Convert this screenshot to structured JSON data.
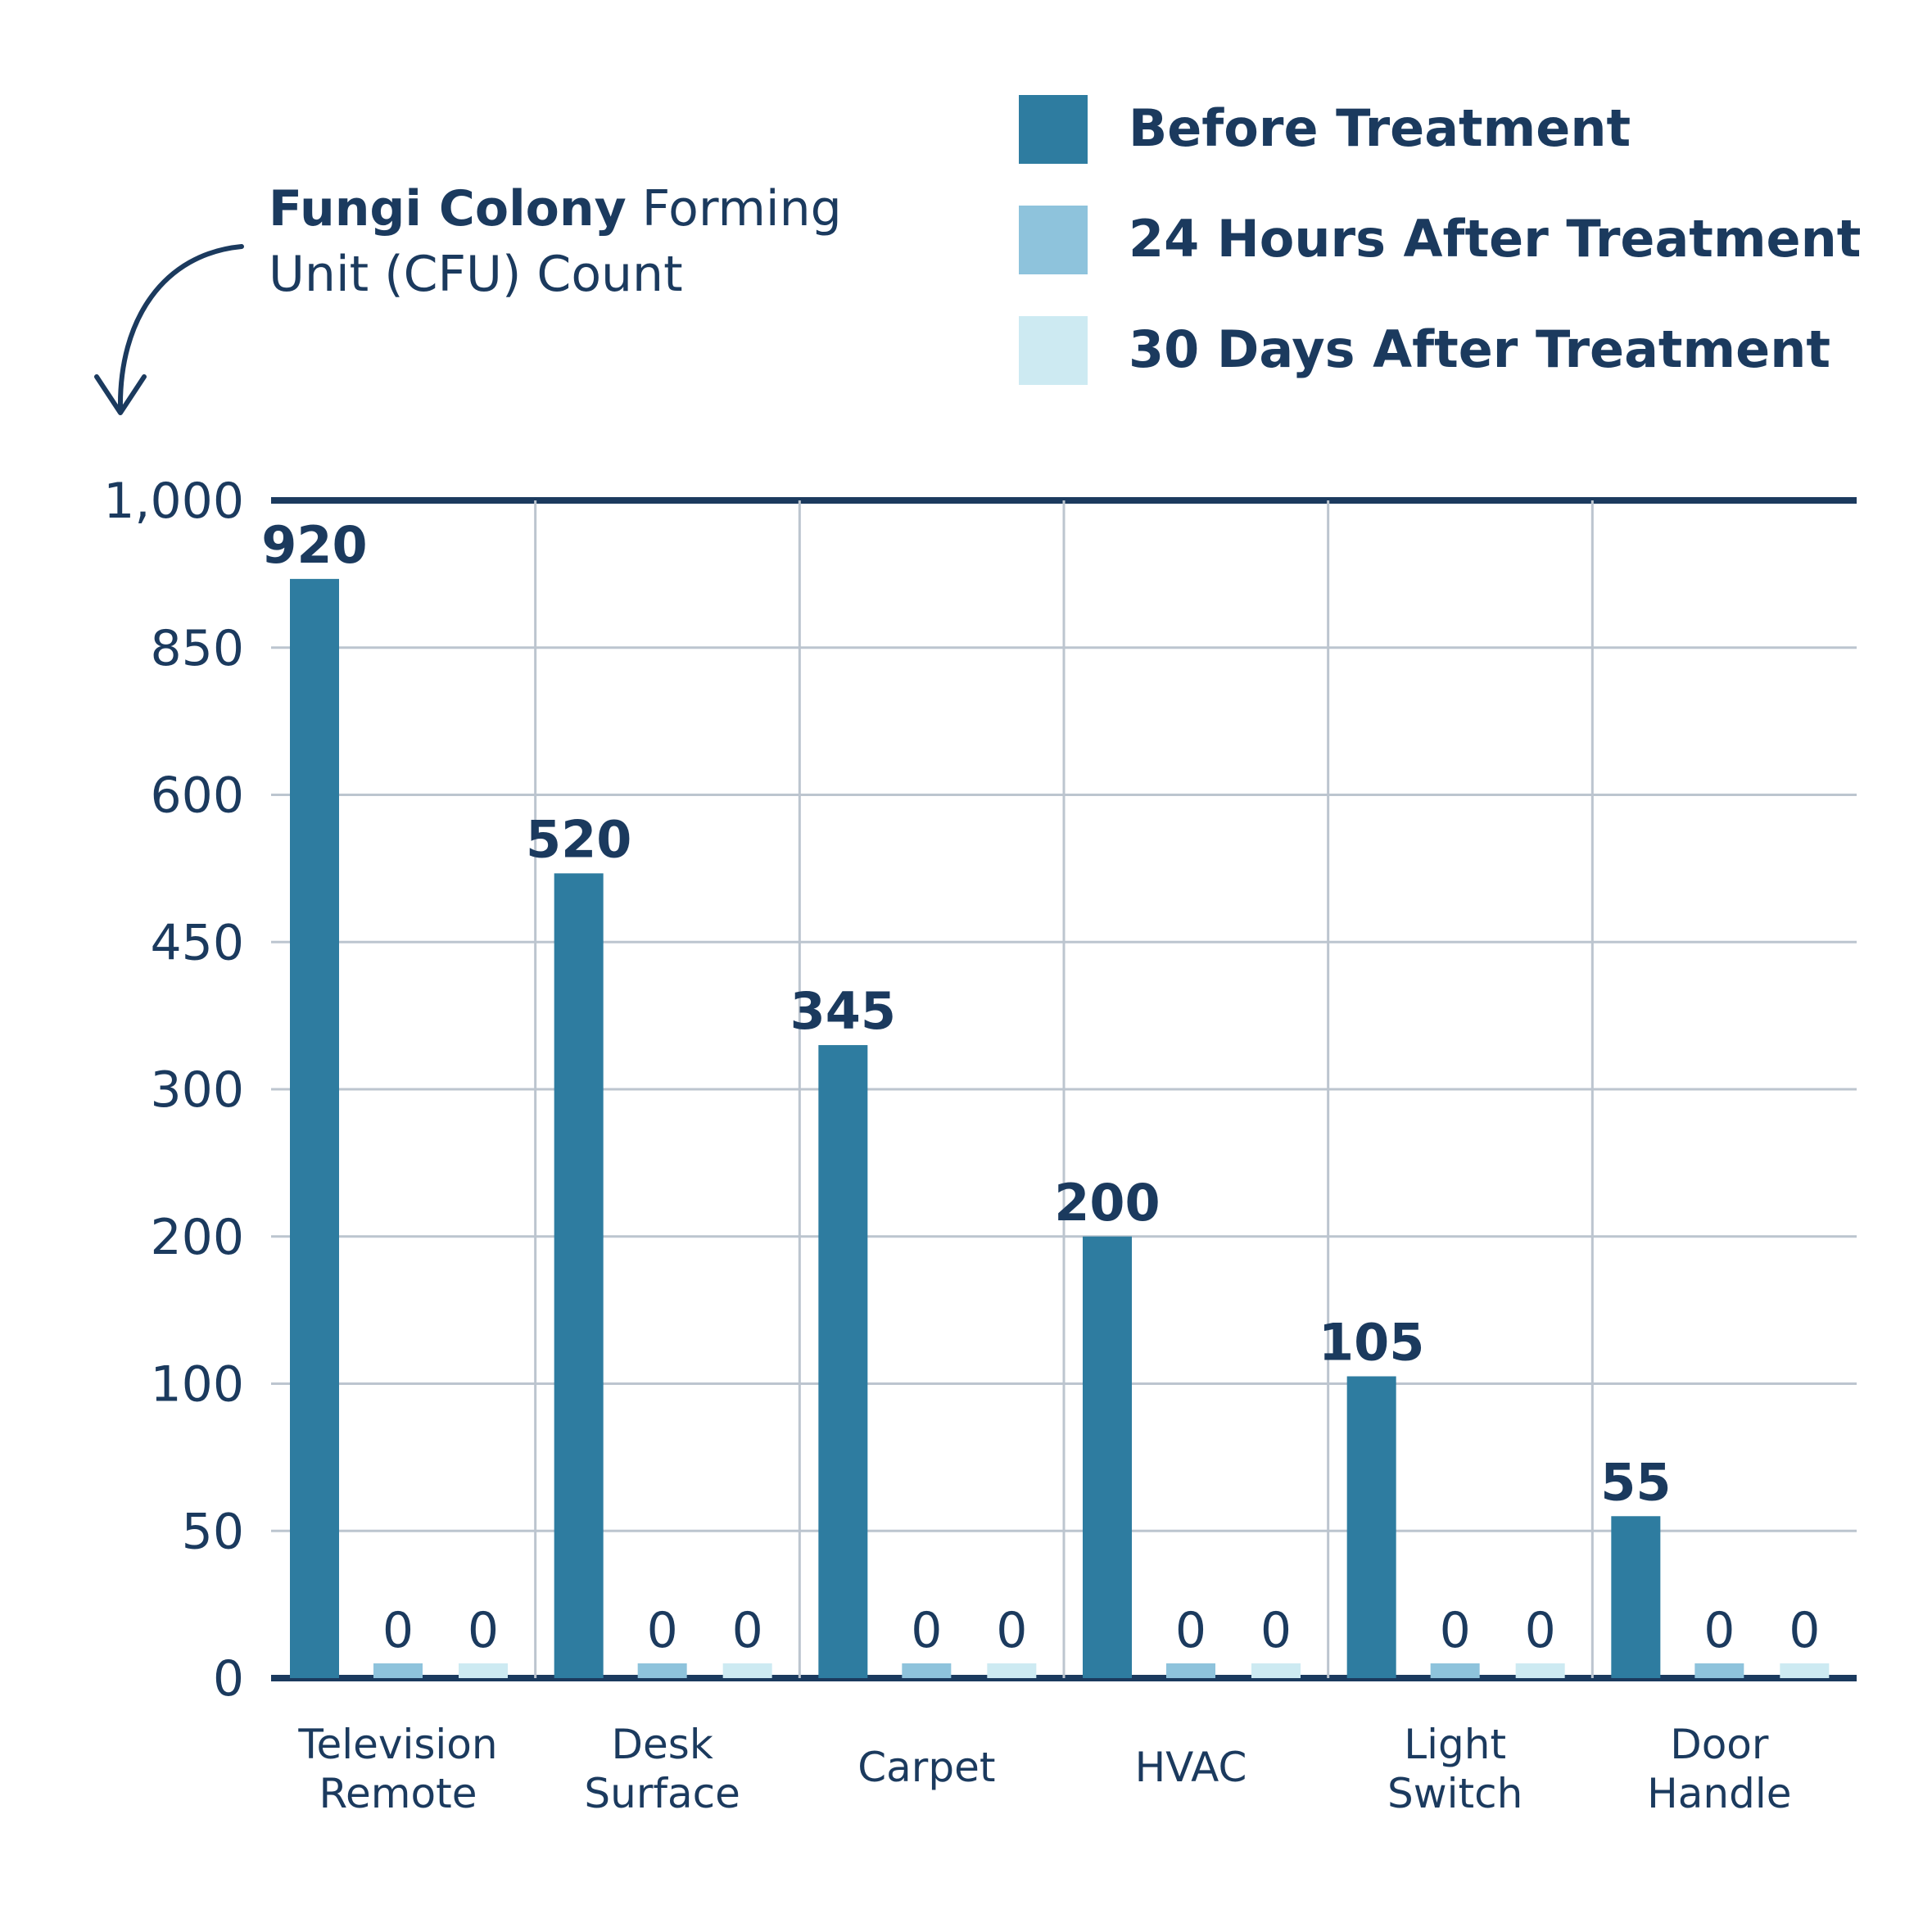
{
  "chart_data": {
    "type": "bar",
    "y_label": {
      "bold": "Fungi Colony",
      "line1": "Forming",
      "line2": "Unit (CFU) Count"
    },
    "categories": [
      [
        "Television",
        "Remote"
      ],
      [
        "Desk",
        "Surface"
      ],
      [
        "Carpet"
      ],
      [
        "HVAC"
      ],
      [
        "Light",
        "Switch"
      ],
      [
        "Door",
        "Handle"
      ]
    ],
    "series": [
      {
        "name": "Before Treatment",
        "color": "#2e7ca0",
        "values": [
          920,
          520,
          345,
          200,
          105,
          55
        ]
      },
      {
        "name": "24 Hours After Treatment",
        "color": "#8ec3dc",
        "values": [
          0,
          0,
          0,
          0,
          0,
          0
        ]
      },
      {
        "name": "30 Days After Treatment",
        "color": "#cdeaf2",
        "values": [
          0,
          0,
          0,
          0,
          0,
          0
        ]
      }
    ],
    "ylim": [
      0,
      1000
    ],
    "yticks": [
      0,
      50,
      100,
      200,
      300,
      450,
      600,
      850,
      {
        "value": 1000,
        "label": "1,000"
      }
    ],
    "grid": true
  }
}
